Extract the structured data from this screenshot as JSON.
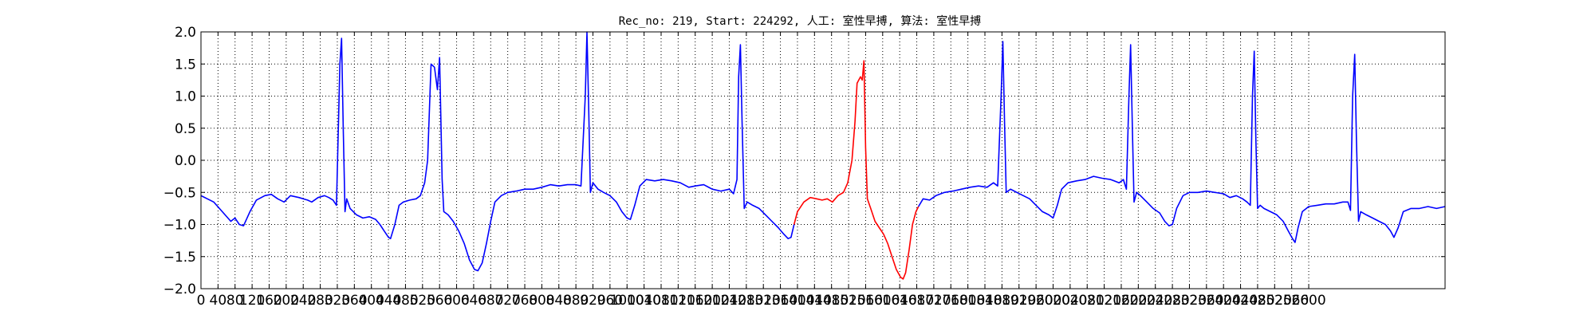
{
  "chart_data": {
    "type": "line",
    "title": "Rec_no: 219, Start: 224292, 人工: 室性早搏, 算法: 室性早搏",
    "xlabel": "",
    "ylabel": "",
    "xlim": [
      0,
      2920
    ],
    "ylim": [
      -2.0,
      2.0
    ],
    "grid": true,
    "xticks": [
      0,
      40,
      80,
      120,
      160,
      200,
      240,
      280,
      320,
      360,
      400,
      440,
      480,
      520,
      560,
      600,
      640,
      680,
      720,
      760,
      800,
      840,
      880,
      920,
      960,
      1000,
      1040,
      1080,
      1120,
      1160,
      1200,
      1240,
      1280,
      1320,
      1360,
      1400,
      1440,
      1480,
      1520,
      1560,
      1600,
      1640,
      1680,
      1720,
      1760,
      1800,
      1840,
      1880,
      1920,
      1960,
      2000,
      2040,
      2080,
      2120,
      2160,
      2200,
      2240,
      2280,
      2320,
      2360,
      2400,
      2440,
      2480,
      2520,
      2560,
      2600
    ],
    "yticks": [
      "2.0",
      "1.5",
      "1.0",
      "0.5",
      "0.0",
      "−0.5",
      "−1.0",
      "−1.5",
      "−2.0"
    ],
    "ytick_values": [
      2.0,
      1.5,
      1.0,
      0.5,
      0.0,
      -0.5,
      -1.0,
      -1.5,
      -2.0
    ],
    "series": [
      {
        "color": "#0000ff",
        "points": [
          [
            0,
            -0.55
          ],
          [
            15,
            -0.6
          ],
          [
            30,
            -0.65
          ],
          [
            50,
            -0.8
          ],
          [
            70,
            -0.95
          ],
          [
            80,
            -0.9
          ],
          [
            90,
            -1.0
          ],
          [
            100,
            -1.02
          ],
          [
            115,
            -0.8
          ],
          [
            130,
            -0.62
          ],
          [
            150,
            -0.55
          ],
          [
            165,
            -0.53
          ],
          [
            180,
            -0.6
          ],
          [
            195,
            -0.65
          ],
          [
            210,
            -0.55
          ],
          [
            230,
            -0.58
          ],
          [
            250,
            -0.62
          ],
          [
            260,
            -0.65
          ],
          [
            275,
            -0.58
          ],
          [
            290,
            -0.55
          ],
          [
            300,
            -0.58
          ],
          [
            310,
            -0.62
          ],
          [
            318,
            -0.7
          ],
          [
            326,
            1.5
          ],
          [
            330,
            1.9
          ],
          [
            334,
            0.5
          ],
          [
            338,
            -0.8
          ],
          [
            342,
            -0.6
          ],
          [
            350,
            -0.75
          ],
          [
            365,
            -0.85
          ],
          [
            380,
            -0.9
          ],
          [
            395,
            -0.88
          ],
          [
            410,
            -0.92
          ],
          [
            420,
            -1.0
          ],
          [
            430,
            -1.1
          ],
          [
            440,
            -1.2
          ],
          [
            445,
            -1.22
          ],
          [
            455,
            -1.0
          ],
          [
            465,
            -0.7
          ],
          [
            475,
            -0.65
          ],
          [
            490,
            -0.62
          ],
          [
            505,
            -0.6
          ],
          [
            515,
            -0.55
          ],
          [
            525,
            -0.35
          ],
          [
            532,
            0.0
          ],
          [
            540,
            1.5
          ],
          [
            548,
            1.45
          ],
          [
            555,
            1.1
          ],
          [
            560,
            1.6
          ],
          [
            566,
            -0.3
          ],
          [
            570,
            -0.8
          ],
          [
            580,
            -0.85
          ],
          [
            592,
            -0.95
          ],
          [
            605,
            -1.1
          ],
          [
            618,
            -1.3
          ],
          [
            630,
            -1.55
          ],
          [
            642,
            -1.7
          ],
          [
            650,
            -1.72
          ],
          [
            660,
            -1.6
          ],
          [
            670,
            -1.3
          ],
          [
            680,
            -0.95
          ],
          [
            690,
            -0.65
          ],
          [
            705,
            -0.55
          ],
          [
            720,
            -0.5
          ],
          [
            740,
            -0.48
          ],
          [
            760,
            -0.45
          ],
          [
            780,
            -0.45
          ],
          [
            800,
            -0.42
          ],
          [
            820,
            -0.38
          ],
          [
            840,
            -0.4
          ],
          [
            860,
            -0.38
          ],
          [
            880,
            -0.38
          ],
          [
            892,
            -0.4
          ],
          [
            902,
            1.0
          ],
          [
            906,
            2.0
          ],
          [
            910,
            0.8
          ],
          [
            914,
            -0.5
          ],
          [
            920,
            -0.35
          ],
          [
            932,
            -0.45
          ],
          [
            945,
            -0.5
          ],
          [
            960,
            -0.55
          ],
          [
            975,
            -0.65
          ],
          [
            988,
            -0.8
          ],
          [
            1000,
            -0.9
          ],
          [
            1008,
            -0.92
          ],
          [
            1018,
            -0.7
          ],
          [
            1030,
            -0.4
          ],
          [
            1045,
            -0.3
          ],
          [
            1065,
            -0.32
          ],
          [
            1085,
            -0.3
          ],
          [
            1105,
            -0.32
          ],
          [
            1125,
            -0.35
          ],
          [
            1145,
            -0.42
          ],
          [
            1160,
            -0.4
          ],
          [
            1180,
            -0.38
          ],
          [
            1200,
            -0.45
          ],
          [
            1220,
            -0.48
          ],
          [
            1240,
            -0.45
          ],
          [
            1250,
            -0.52
          ],
          [
            1258,
            -0.3
          ],
          [
            1262,
            1.3
          ],
          [
            1266,
            1.8
          ],
          [
            1270,
            0.6
          ],
          [
            1275,
            -0.75
          ],
          [
            1282,
            -0.65
          ],
          [
            1295,
            -0.7
          ],
          [
            1310,
            -0.75
          ],
          [
            1325,
            -0.85
          ],
          [
            1340,
            -0.95
          ],
          [
            1355,
            -1.05
          ],
          [
            1368,
            -1.15
          ],
          [
            1378,
            -1.22
          ],
          [
            1385,
            -1.2
          ],
          [
            1392,
            -1.0
          ]
        ]
      },
      {
        "color": "#ff0000",
        "points": [
          [
            1392,
            -1.0
          ],
          [
            1400,
            -0.8
          ],
          [
            1415,
            -0.65
          ],
          [
            1430,
            -0.58
          ],
          [
            1445,
            -0.6
          ],
          [
            1458,
            -0.62
          ],
          [
            1470,
            -0.6
          ],
          [
            1482,
            -0.65
          ],
          [
            1495,
            -0.55
          ],
          [
            1508,
            -0.5
          ],
          [
            1518,
            -0.35
          ],
          [
            1528,
            0.0
          ],
          [
            1535,
            0.6
          ],
          [
            1540,
            1.2
          ],
          [
            1548,
            1.3
          ],
          [
            1552,
            1.25
          ],
          [
            1556,
            1.55
          ],
          [
            1560,
            0.2
          ],
          [
            1564,
            -0.6
          ],
          [
            1572,
            -0.75
          ],
          [
            1582,
            -0.95
          ],
          [
            1592,
            -1.05
          ],
          [
            1602,
            -1.15
          ],
          [
            1612,
            -1.3
          ],
          [
            1622,
            -1.5
          ],
          [
            1632,
            -1.7
          ],
          [
            1642,
            -1.82
          ],
          [
            1648,
            -1.85
          ],
          [
            1654,
            -1.75
          ],
          [
            1662,
            -1.4
          ],
          [
            1670,
            -1.0
          ],
          [
            1678,
            -0.8
          ],
          [
            1684,
            -0.72
          ]
        ]
      },
      {
        "color": "#0000ff",
        "points": [
          [
            1684,
            -0.72
          ],
          [
            1695,
            -0.6
          ],
          [
            1710,
            -0.62
          ],
          [
            1725,
            -0.55
          ],
          [
            1745,
            -0.5
          ],
          [
            1765,
            -0.48
          ],
          [
            1785,
            -0.45
          ],
          [
            1805,
            -0.42
          ],
          [
            1825,
            -0.4
          ],
          [
            1845,
            -0.42
          ],
          [
            1860,
            -0.35
          ],
          [
            1870,
            -0.4
          ],
          [
            1878,
            1.0
          ],
          [
            1882,
            1.85
          ],
          [
            1886,
            0.6
          ],
          [
            1890,
            -0.5
          ],
          [
            1900,
            -0.45
          ],
          [
            1915,
            -0.5
          ],
          [
            1930,
            -0.55
          ],
          [
            1945,
            -0.6
          ],
          [
            1960,
            -0.7
          ],
          [
            1975,
            -0.8
          ],
          [
            1990,
            -0.85
          ],
          [
            2000,
            -0.9
          ],
          [
            2010,
            -0.7
          ],
          [
            2020,
            -0.45
          ],
          [
            2035,
            -0.35
          ],
          [
            2055,
            -0.32
          ],
          [
            2075,
            -0.3
          ],
          [
            2095,
            -0.25
          ],
          [
            2115,
            -0.28
          ],
          [
            2135,
            -0.3
          ],
          [
            2155,
            -0.35
          ],
          [
            2165,
            -0.3
          ],
          [
            2172,
            -0.45
          ],
          [
            2178,
            1.0
          ],
          [
            2182,
            1.8
          ],
          [
            2186,
            0.5
          ],
          [
            2190,
            -0.65
          ],
          [
            2196,
            -0.5
          ],
          [
            2205,
            -0.55
          ],
          [
            2220,
            -0.65
          ],
          [
            2235,
            -0.75
          ],
          [
            2250,
            -0.82
          ],
          [
            2262,
            -0.95
          ],
          [
            2272,
            -1.02
          ],
          [
            2280,
            -1.0
          ],
          [
            2290,
            -0.75
          ],
          [
            2305,
            -0.55
          ],
          [
            2320,
            -0.5
          ],
          [
            2340,
            -0.5
          ],
          [
            2360,
            -0.48
          ],
          [
            2380,
            -0.5
          ],
          [
            2400,
            -0.52
          ],
          [
            2415,
            -0.58
          ],
          [
            2430,
            -0.55
          ],
          [
            2445,
            -0.6
          ],
          [
            2455,
            -0.65
          ],
          [
            2463,
            -0.7
          ],
          [
            2468,
            1.0
          ],
          [
            2472,
            1.7
          ],
          [
            2476,
            0.3
          ],
          [
            2480,
            -0.75
          ],
          [
            2486,
            -0.7
          ],
          [
            2495,
            -0.75
          ],
          [
            2510,
            -0.8
          ],
          [
            2525,
            -0.85
          ],
          [
            2540,
            -0.95
          ],
          [
            2552,
            -1.1
          ],
          [
            2562,
            -1.22
          ],
          [
            2568,
            -1.28
          ],
          [
            2575,
            -1.05
          ],
          [
            2585,
            -0.8
          ],
          [
            2600,
            -0.72
          ],
          [
            2620,
            -0.7
          ],
          [
            2640,
            -0.68
          ],
          [
            2660,
            -0.68
          ],
          [
            2680,
            -0.65
          ],
          [
            2692,
            -0.65
          ],
          [
            2698,
            -0.78
          ],
          [
            2703,
            1.0
          ],
          [
            2708,
            1.65
          ],
          [
            2712,
            0.3
          ],
          [
            2717,
            -0.95
          ],
          [
            2722,
            -0.8
          ],
          [
            2735,
            -0.85
          ],
          [
            2750,
            -0.9
          ],
          [
            2765,
            -0.95
          ],
          [
            2780,
            -1.0
          ],
          [
            2792,
            -1.1
          ],
          [
            2800,
            -1.2
          ],
          [
            2810,
            -1.05
          ],
          [
            2822,
            -0.8
          ],
          [
            2840,
            -0.75
          ],
          [
            2860,
            -0.75
          ],
          [
            2880,
            -0.72
          ],
          [
            2900,
            -0.75
          ],
          [
            2920,
            -0.72
          ]
        ]
      }
    ]
  }
}
